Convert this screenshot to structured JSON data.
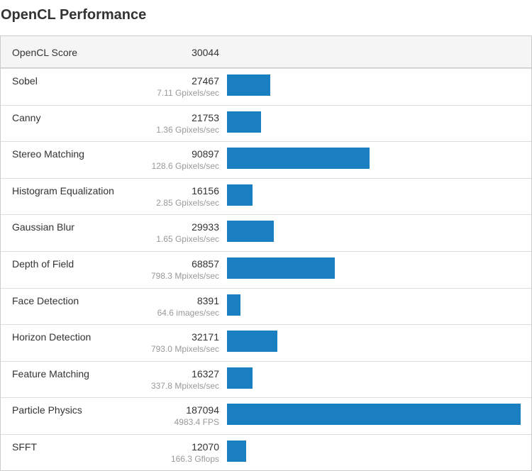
{
  "title": "OpenCL Performance",
  "header": {
    "label": "OpenCL Score",
    "score": 30044
  },
  "rows": [
    {
      "name": "Sobel",
      "score": 27467,
      "rate": "7.11 Gpixels/sec"
    },
    {
      "name": "Canny",
      "score": 21753,
      "rate": "1.36 Gpixels/sec"
    },
    {
      "name": "Stereo Matching",
      "score": 90897,
      "rate": "128.6 Gpixels/sec"
    },
    {
      "name": "Histogram Equalization",
      "score": 16156,
      "rate": "2.85 Gpixels/sec"
    },
    {
      "name": "Gaussian Blur",
      "score": 29933,
      "rate": "1.65 Gpixels/sec"
    },
    {
      "name": "Depth of Field",
      "score": 68857,
      "rate": "798.3 Mpixels/sec"
    },
    {
      "name": "Face Detection",
      "score": 8391,
      "rate": "64.6 images/sec"
    },
    {
      "name": "Horizon Detection",
      "score": 32171,
      "rate": "793.0 Mpixels/sec"
    },
    {
      "name": "Feature Matching",
      "score": 16327,
      "rate": "337.8 Mpixels/sec"
    },
    {
      "name": "Particle Physics",
      "score": 187094,
      "rate": "4983.4 FPS"
    },
    {
      "name": "SFFT",
      "score": 12070,
      "rate": "166.3 Gflops"
    }
  ]
}
